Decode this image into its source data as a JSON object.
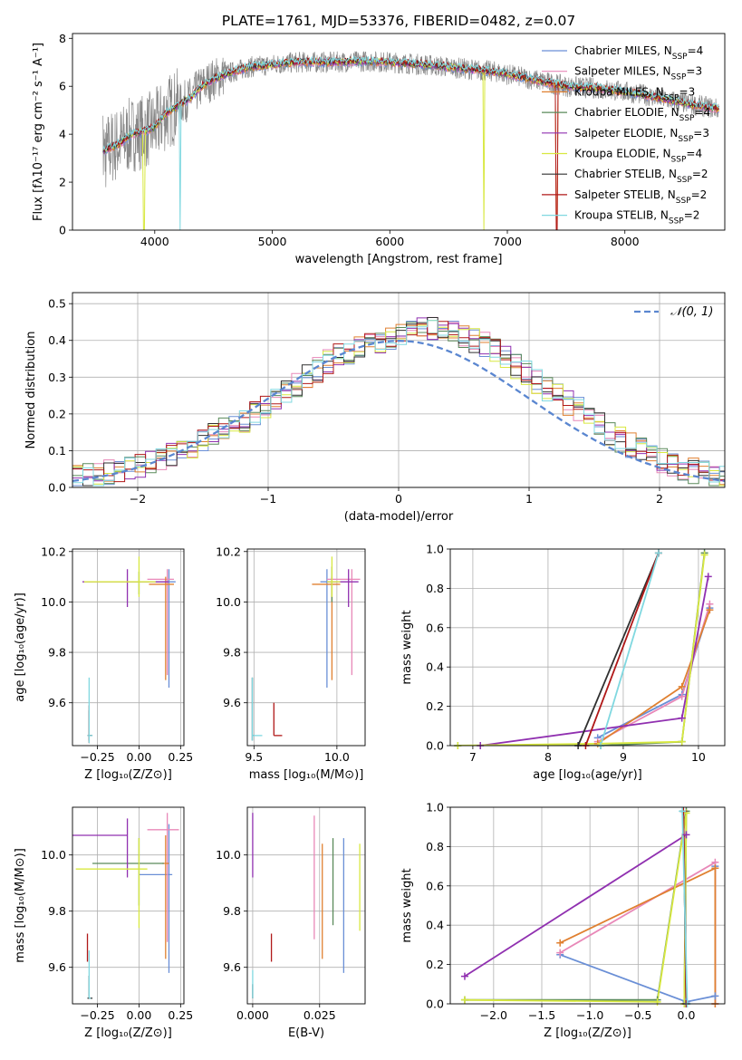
{
  "title": "PLATE=1761, MJD=53376, FIBERID=0482, z=0.07",
  "colors": {
    "c_miles": "#6a8fd6",
    "s_miles": "#e888b8",
    "k_miles": "#e08030",
    "c_elodie": "#5a8a5a",
    "s_elodie": "#9030b0",
    "k_elodie": "#d8e840",
    "c_stelib": "#303030",
    "s_stelib": "#b01818",
    "k_stelib": "#80d8e0",
    "data": "#888888",
    "normal": "#5a86d0"
  },
  "chart_data": [
    {
      "id": "spectrum",
      "type": "line",
      "xlabel": "wavelength [Angstrom, rest frame]",
      "ylabel": "Flux [fλ10⁻¹⁷ erg cm⁻² s⁻¹ A⁻¹]",
      "xlim": [
        3300,
        8850
      ],
      "ylim": [
        0,
        8.2
      ],
      "xticks": [
        "4000",
        "5000",
        "6000",
        "7000",
        "8000"
      ],
      "yticks": [
        "0",
        "2",
        "4",
        "6",
        "8"
      ],
      "legend": [
        "Chabrier MILES, N_SSP=4",
        "Salpeter MILES, N_SSP=3",
        "Kroupa MILES, N_SSP=3",
        "Chabrier ELODIE, N_SSP=4",
        "Salpeter ELODIE, N_SSP=3",
        "Kroupa ELODIE, N_SSP=4",
        "Chabrier STELIB, N_SSP=2",
        "Salpeter STELIB, N_SSP=2",
        "Kroupa STELIB, N_SSP=2"
      ],
      "legend_placement": "right",
      "continuum": {
        "x": [
          3560,
          3700,
          3800,
          3900,
          4000,
          4100,
          4200,
          4300,
          4400,
          4500,
          4600,
          4800,
          5000,
          5200,
          5500,
          5800,
          6000,
          6300,
          6600,
          6900,
          7200,
          7500,
          7800,
          8100,
          8500,
          8800
        ],
        "y": [
          3.3,
          3.6,
          4.0,
          4.1,
          4.3,
          4.9,
          5.2,
          5.5,
          6.0,
          6.3,
          6.5,
          6.8,
          6.9,
          7.0,
          7.0,
          7.05,
          7.0,
          6.9,
          6.75,
          6.6,
          6.3,
          6.0,
          5.9,
          5.7,
          5.3,
          5.05
        ]
      }
    },
    {
      "id": "residuals",
      "type": "step",
      "xlabel": "(data-model)/error",
      "ylabel": "Normed distribution",
      "xlim": [
        -2.5,
        2.5
      ],
      "ylim": [
        0,
        0.53
      ],
      "xticks": [
        "−2",
        "−1",
        "0",
        "1",
        "2"
      ],
      "yticks": [
        "0.0",
        "0.1",
        "0.2",
        "0.3",
        "0.4",
        "0.5"
      ],
      "legend": [
        "N(0,1)"
      ],
      "legend_placement": "top-right",
      "bin_width": 0.1,
      "bin_start": -2.5,
      "base": [
        0.025,
        0.03,
        0.035,
        0.04,
        0.045,
        0.05,
        0.06,
        0.07,
        0.08,
        0.09,
        0.1,
        0.11,
        0.125,
        0.14,
        0.16,
        0.17,
        0.18,
        0.2,
        0.22,
        0.24,
        0.26,
        0.28,
        0.3,
        0.32,
        0.34,
        0.36,
        0.37,
        0.38,
        0.39,
        0.4,
        0.41,
        0.42,
        0.425,
        0.43,
        0.43,
        0.425,
        0.42,
        0.41,
        0.4,
        0.39,
        0.37,
        0.35,
        0.33,
        0.31,
        0.29,
        0.27,
        0.25,
        0.23,
        0.21,
        0.19,
        0.17,
        0.15,
        0.13,
        0.115,
        0.1,
        0.09,
        0.075,
        0.065,
        0.055,
        0.045,
        0.04,
        0.035,
        0.03,
        0.025
      ]
    },
    {
      "id": "z_age",
      "type": "errorbar",
      "xlabel": "Z [log₁₀(Z/Z⊙)]",
      "ylabel": "age  [log₁₀(age/yr)]",
      "xlim": [
        -0.4,
        0.27
      ],
      "ylim": [
        9.43,
        10.21
      ],
      "xticks": [
        [
          -0.25,
          "−0.25"
        ],
        [
          0,
          "0.00"
        ],
        [
          0.25,
          "0.25"
        ]
      ],
      "yticks": [
        [
          9.6,
          "9.6"
        ],
        [
          9.8,
          "9.8"
        ],
        [
          10.0,
          "10.0"
        ],
        [
          10.2,
          "10.2"
        ]
      ],
      "points": [
        {
          "c": "c_miles",
          "x": 0.18,
          "y": 10.08,
          "xe": [
            0.12,
            0.04
          ],
          "ye": [
            0.42,
            0.05
          ]
        },
        {
          "c": "s_miles",
          "x": 0.17,
          "y": 10.09,
          "xe": [
            0.12,
            0.04
          ],
          "ye": [
            0.38,
            0.04
          ]
        },
        {
          "c": "k_miles",
          "x": 0.16,
          "y": 10.07,
          "xe": [
            0.1,
            0.05
          ],
          "ye": [
            0.38,
            0.03
          ]
        },
        {
          "c": "c_elodie",
          "x": 0.0,
          "y": 10.08,
          "xe": [
            0.08,
            0.06
          ],
          "ye": [
            0.05,
            0.04
          ]
        },
        {
          "c": "s_elodie",
          "x": -0.07,
          "y": 10.08,
          "xe": [
            0.27,
            0.25
          ],
          "ye": [
            0.1,
            0.05
          ]
        },
        {
          "c": "k_elodie",
          "x": 0.0,
          "y": 10.08,
          "xe": [
            0.33,
            0.1
          ],
          "ye": [
            0.06,
            0.1
          ]
        },
        {
          "c": "c_stelib",
          "x": -0.3,
          "y": 9.47,
          "xe": [
            0.01,
            0.02
          ],
          "ye": [
            0.02,
            0.1
          ]
        },
        {
          "c": "s_stelib",
          "x": -0.3,
          "y": 9.47,
          "xe": [
            0.01,
            0.01
          ],
          "ye": [
            0.03,
            0.12
          ]
        },
        {
          "c": "k_stelib",
          "x": -0.3,
          "y": 9.47,
          "xe": [
            0.01,
            0.02
          ],
          "ye": [
            0.03,
            0.23
          ]
        }
      ]
    },
    {
      "id": "mass_age",
      "type": "errorbar",
      "xlabel": "mass [log₁₀(M/M⊙)]",
      "ylabel": "",
      "xlim": [
        9.46,
        10.17
      ],
      "ylim": [
        9.43,
        10.21
      ],
      "xticks": [
        [
          9.5,
          "9.5"
        ],
        [
          10.0,
          "10.0"
        ]
      ],
      "yticks": [
        [
          9.6,
          "9.6"
        ],
        [
          9.8,
          "9.8"
        ],
        [
          10.0,
          "10.0"
        ],
        [
          10.2,
          "10.2"
        ]
      ],
      "points": [
        {
          "c": "c_miles",
          "x": 9.94,
          "y": 10.08,
          "xe": [
            0.04,
            0.05
          ],
          "ye": [
            0.42,
            0.05
          ]
        },
        {
          "c": "s_miles",
          "x": 10.09,
          "y": 10.09,
          "xe": [
            0.15,
            0.05
          ],
          "ye": [
            0.38,
            0.04
          ]
        },
        {
          "c": "k_miles",
          "x": 9.97,
          "y": 10.07,
          "xe": [
            0.12,
            0.05
          ],
          "ye": [
            0.38,
            0.03
          ]
        },
        {
          "c": "c_elodie",
          "x": 9.97,
          "y": 10.08,
          "xe": [
            0.03,
            0.03
          ],
          "ye": [
            0.08,
            0.06
          ]
        },
        {
          "c": "s_elodie",
          "x": 10.07,
          "y": 10.08,
          "xe": [
            0.13,
            0.06
          ],
          "ye": [
            0.1,
            0.05
          ]
        },
        {
          "c": "k_elodie",
          "x": 9.97,
          "y": 10.08,
          "xe": [
            0.03,
            0.05
          ],
          "ye": [
            0.06,
            0.1
          ]
        },
        {
          "c": "c_stelib",
          "x": 9.49,
          "y": 9.47,
          "xe": [
            0.0,
            0.01
          ],
          "ye": [
            0.02,
            0.23
          ]
        },
        {
          "c": "s_stelib",
          "x": 9.62,
          "y": 9.47,
          "xe": [
            0.0,
            0.05
          ],
          "ye": [
            0.0,
            0.13
          ]
        },
        {
          "c": "k_stelib",
          "x": 9.49,
          "y": 9.47,
          "xe": [
            0.0,
            0.06
          ],
          "ye": [
            0.02,
            0.23
          ]
        }
      ]
    },
    {
      "id": "age_weight",
      "type": "line",
      "xlabel": "age  [log₁₀(age/yr)]",
      "ylabel": "mass weight",
      "xlim": [
        6.7,
        10.35
      ],
      "ylim": [
        0,
        1
      ],
      "xticks": [
        [
          7,
          "7"
        ],
        [
          8,
          "8"
        ],
        [
          9,
          "9"
        ],
        [
          10,
          "10"
        ]
      ],
      "yticks": [
        [
          0,
          "0.0"
        ],
        [
          0.2,
          "0.2"
        ],
        [
          0.4,
          "0.4"
        ],
        [
          0.6,
          "0.6"
        ],
        [
          0.8,
          "0.8"
        ],
        [
          1.0,
          "1.0"
        ]
      ],
      "series": [
        {
          "c": "c_miles",
          "x": [
            8.66,
            9.78,
            10.15
          ],
          "y": [
            0.04,
            0.26,
            0.7
          ]
        },
        {
          "c": "s_miles",
          "x": [
            8.66,
            9.78,
            10.15
          ],
          "y": [
            0.02,
            0.25,
            0.72
          ]
        },
        {
          "c": "k_miles",
          "x": [
            8.66,
            9.78,
            10.15
          ],
          "y": [
            0.01,
            0.3,
            0.69
          ]
        },
        {
          "c": "c_elodie",
          "x": [
            6.8,
            8.7,
            9.78,
            10.08
          ],
          "y": [
            0.0,
            0.0,
            0.02,
            0.98
          ]
        },
        {
          "c": "s_elodie",
          "x": [
            7.1,
            9.78,
            10.13
          ],
          "y": [
            0.0,
            0.14,
            0.86
          ]
        },
        {
          "c": "k_elodie",
          "x": [
            6.8,
            8.7,
            9.78,
            10.08
          ],
          "y": [
            0.0,
            0.01,
            0.02,
            0.97
          ]
        },
        {
          "c": "c_stelib",
          "x": [
            8.4,
            9.47
          ],
          "y": [
            0.0,
            0.98
          ]
        },
        {
          "c": "s_stelib",
          "x": [
            8.5,
            9.47
          ],
          "y": [
            0.0,
            0.98
          ]
        },
        {
          "c": "k_stelib",
          "x": [
            8.7,
            9.47
          ],
          "y": [
            0.0,
            0.98
          ]
        }
      ]
    },
    {
      "id": "z_mass",
      "type": "errorbar",
      "xlabel": "Z [log₁₀(Z/Z⊙)]",
      "ylabel": "mass [log₁₀(M/M⊙)]",
      "xlim": [
        -0.4,
        0.27
      ],
      "ylim": [
        9.47,
        10.17
      ],
      "xticks": [
        [
          -0.25,
          "−0.25"
        ],
        [
          0,
          "0.00"
        ],
        [
          0.25,
          "0.25"
        ]
      ],
      "yticks": [
        [
          9.6,
          "9.6"
        ],
        [
          9.8,
          "9.8"
        ],
        [
          10.0,
          "10.0"
        ]
      ],
      "points": [
        {
          "c": "c_miles",
          "x": 0.18,
          "y": 9.93,
          "xe": [
            0.18,
            0.02
          ],
          "ye": [
            0.35,
            0.18
          ]
        },
        {
          "c": "s_miles",
          "x": 0.17,
          "y": 10.09,
          "xe": [
            0.12,
            0.07
          ],
          "ye": [
            0.4,
            0.06
          ]
        },
        {
          "c": "k_miles",
          "x": 0.16,
          "y": 9.97,
          "xe": [
            0.02,
            0.02
          ],
          "ye": [
            0.34,
            0.1
          ]
        },
        {
          "c": "c_elodie",
          "x": 0.0,
          "y": 9.97,
          "xe": [
            0.28,
            0.15
          ],
          "ye": [
            0.15,
            0.09
          ]
        },
        {
          "c": "s_elodie",
          "x": -0.07,
          "y": 10.07,
          "xe": [
            0.33,
            0.0
          ],
          "ye": [
            0.15,
            0.06
          ]
        },
        {
          "c": "k_elodie",
          "x": 0.0,
          "y": 9.95,
          "xe": [
            0.38,
            0.05
          ],
          "ye": [
            0.21,
            0.11
          ]
        },
        {
          "c": "c_stelib",
          "x": -0.3,
          "y": 9.49,
          "xe": [
            0.01,
            0.02
          ],
          "ye": [
            0.0,
            0.08
          ]
        },
        {
          "c": "s_stelib",
          "x": -0.31,
          "y": 9.63,
          "xe": [
            0.0,
            0.0
          ],
          "ye": [
            0.01,
            0.09
          ]
        },
        {
          "c": "k_stelib",
          "x": -0.3,
          "y": 9.49,
          "xe": [
            0.0,
            0.01
          ],
          "ye": [
            0.0,
            0.17
          ]
        }
      ]
    },
    {
      "id": "ebv_mass",
      "type": "errorbar",
      "xlabel": "E(B-V)",
      "ylabel": "",
      "xlim": [
        -0.002,
        0.042
      ],
      "ylim": [
        9.47,
        10.17
      ],
      "xticks": [
        [
          0,
          "0.000"
        ],
        [
          0.025,
          "0.025"
        ]
      ],
      "yticks": [
        [
          9.6,
          "9.6"
        ],
        [
          9.8,
          "9.8"
        ],
        [
          10.0,
          "10.0"
        ]
      ],
      "points": [
        {
          "c": "c_miles",
          "x": 0.034,
          "y": 9.93,
          "xe": [
            0,
            0
          ],
          "ye": [
            0.35,
            0.13
          ]
        },
        {
          "c": "s_miles",
          "x": 0.023,
          "y": 9.95,
          "xe": [
            0,
            0
          ],
          "ye": [
            0.25,
            0.19
          ]
        },
        {
          "c": "k_miles",
          "x": 0.026,
          "y": 9.9,
          "xe": [
            0,
            0
          ],
          "ye": [
            0.27,
            0.14
          ]
        },
        {
          "c": "c_elodie",
          "x": 0.03,
          "y": 9.95,
          "xe": [
            0,
            0
          ],
          "ye": [
            0.2,
            0.11
          ]
        },
        {
          "c": "s_elodie",
          "x": 0.0,
          "y": 10.04,
          "xe": [
            0,
            0
          ],
          "ye": [
            0.12,
            0.11
          ]
        },
        {
          "c": "k_elodie",
          "x": 0.04,
          "y": 9.89,
          "xe": [
            0,
            0
          ],
          "ye": [
            0.16,
            0.15
          ]
        },
        {
          "c": "c_stelib",
          "x": 0.0,
          "y": 9.49,
          "xe": [
            0,
            0
          ],
          "ye": [
            0.0,
            0.05
          ]
        },
        {
          "c": "s_stelib",
          "x": 0.007,
          "y": 9.67,
          "xe": [
            0,
            0
          ],
          "ye": [
            0.05,
            0.05
          ]
        },
        {
          "c": "k_stelib",
          "x": 0.0,
          "y": 9.49,
          "xe": [
            0,
            0
          ],
          "ye": [
            0.0,
            0.1
          ]
        }
      ]
    },
    {
      "id": "z_weight",
      "type": "line",
      "xlabel": "Z [log₁₀(Z/Z⊙)]",
      "ylabel": "mass weight",
      "xlim": [
        -2.45,
        0.4
      ],
      "ylim": [
        0,
        1
      ],
      "xticks": [
        [
          -2,
          "−2.0"
        ],
        [
          -1.5,
          "−1.5"
        ],
        [
          -1,
          "−1.0"
        ],
        [
          -0.5,
          "−0.5"
        ],
        [
          0,
          "0.0"
        ]
      ],
      "yticks": [
        [
          0,
          "0.0"
        ],
        [
          0.2,
          "0.2"
        ],
        [
          0.4,
          "0.4"
        ],
        [
          0.6,
          "0.6"
        ],
        [
          0.8,
          "0.8"
        ],
        [
          1.0,
          "1.0"
        ]
      ],
      "series": [
        {
          "c": "c_miles",
          "x": [
            -1.31,
            0.0,
            0.3,
            0.3
          ],
          "y": [
            0.25,
            0.01,
            0.04,
            0.7
          ]
        },
        {
          "c": "s_miles",
          "x": [
            -1.31,
            0.3,
            0.3
          ],
          "y": [
            0.26,
            0.72,
            0.0
          ]
        },
        {
          "c": "k_miles",
          "x": [
            -1.31,
            0.3,
            0.3
          ],
          "y": [
            0.31,
            0.69,
            0.0
          ]
        },
        {
          "c": "c_elodie",
          "x": [
            -2.3,
            -0.3,
            0.0,
            -0.02
          ],
          "y": [
            0.02,
            0.02,
            0.98,
            0.0
          ]
        },
        {
          "c": "s_elodie",
          "x": [
            -2.3,
            0.0
          ],
          "y": [
            0.14,
            0.86
          ]
        },
        {
          "c": "k_elodie",
          "x": [
            -2.3,
            -0.3,
            0.0,
            -0.02
          ],
          "y": [
            0.02,
            0.01,
            0.97,
            0.0
          ]
        },
        {
          "c": "c_stelib",
          "x": [
            -0.03,
            0.0
          ],
          "y": [
            0.98,
            0.0
          ]
        },
        {
          "c": "s_stelib",
          "x": [
            -0.03,
            0.0
          ],
          "y": [
            0.98,
            0.0
          ]
        },
        {
          "c": "k_stelib",
          "x": [
            -0.04,
            0.01
          ],
          "y": [
            0.98,
            0.0
          ]
        }
      ]
    }
  ]
}
